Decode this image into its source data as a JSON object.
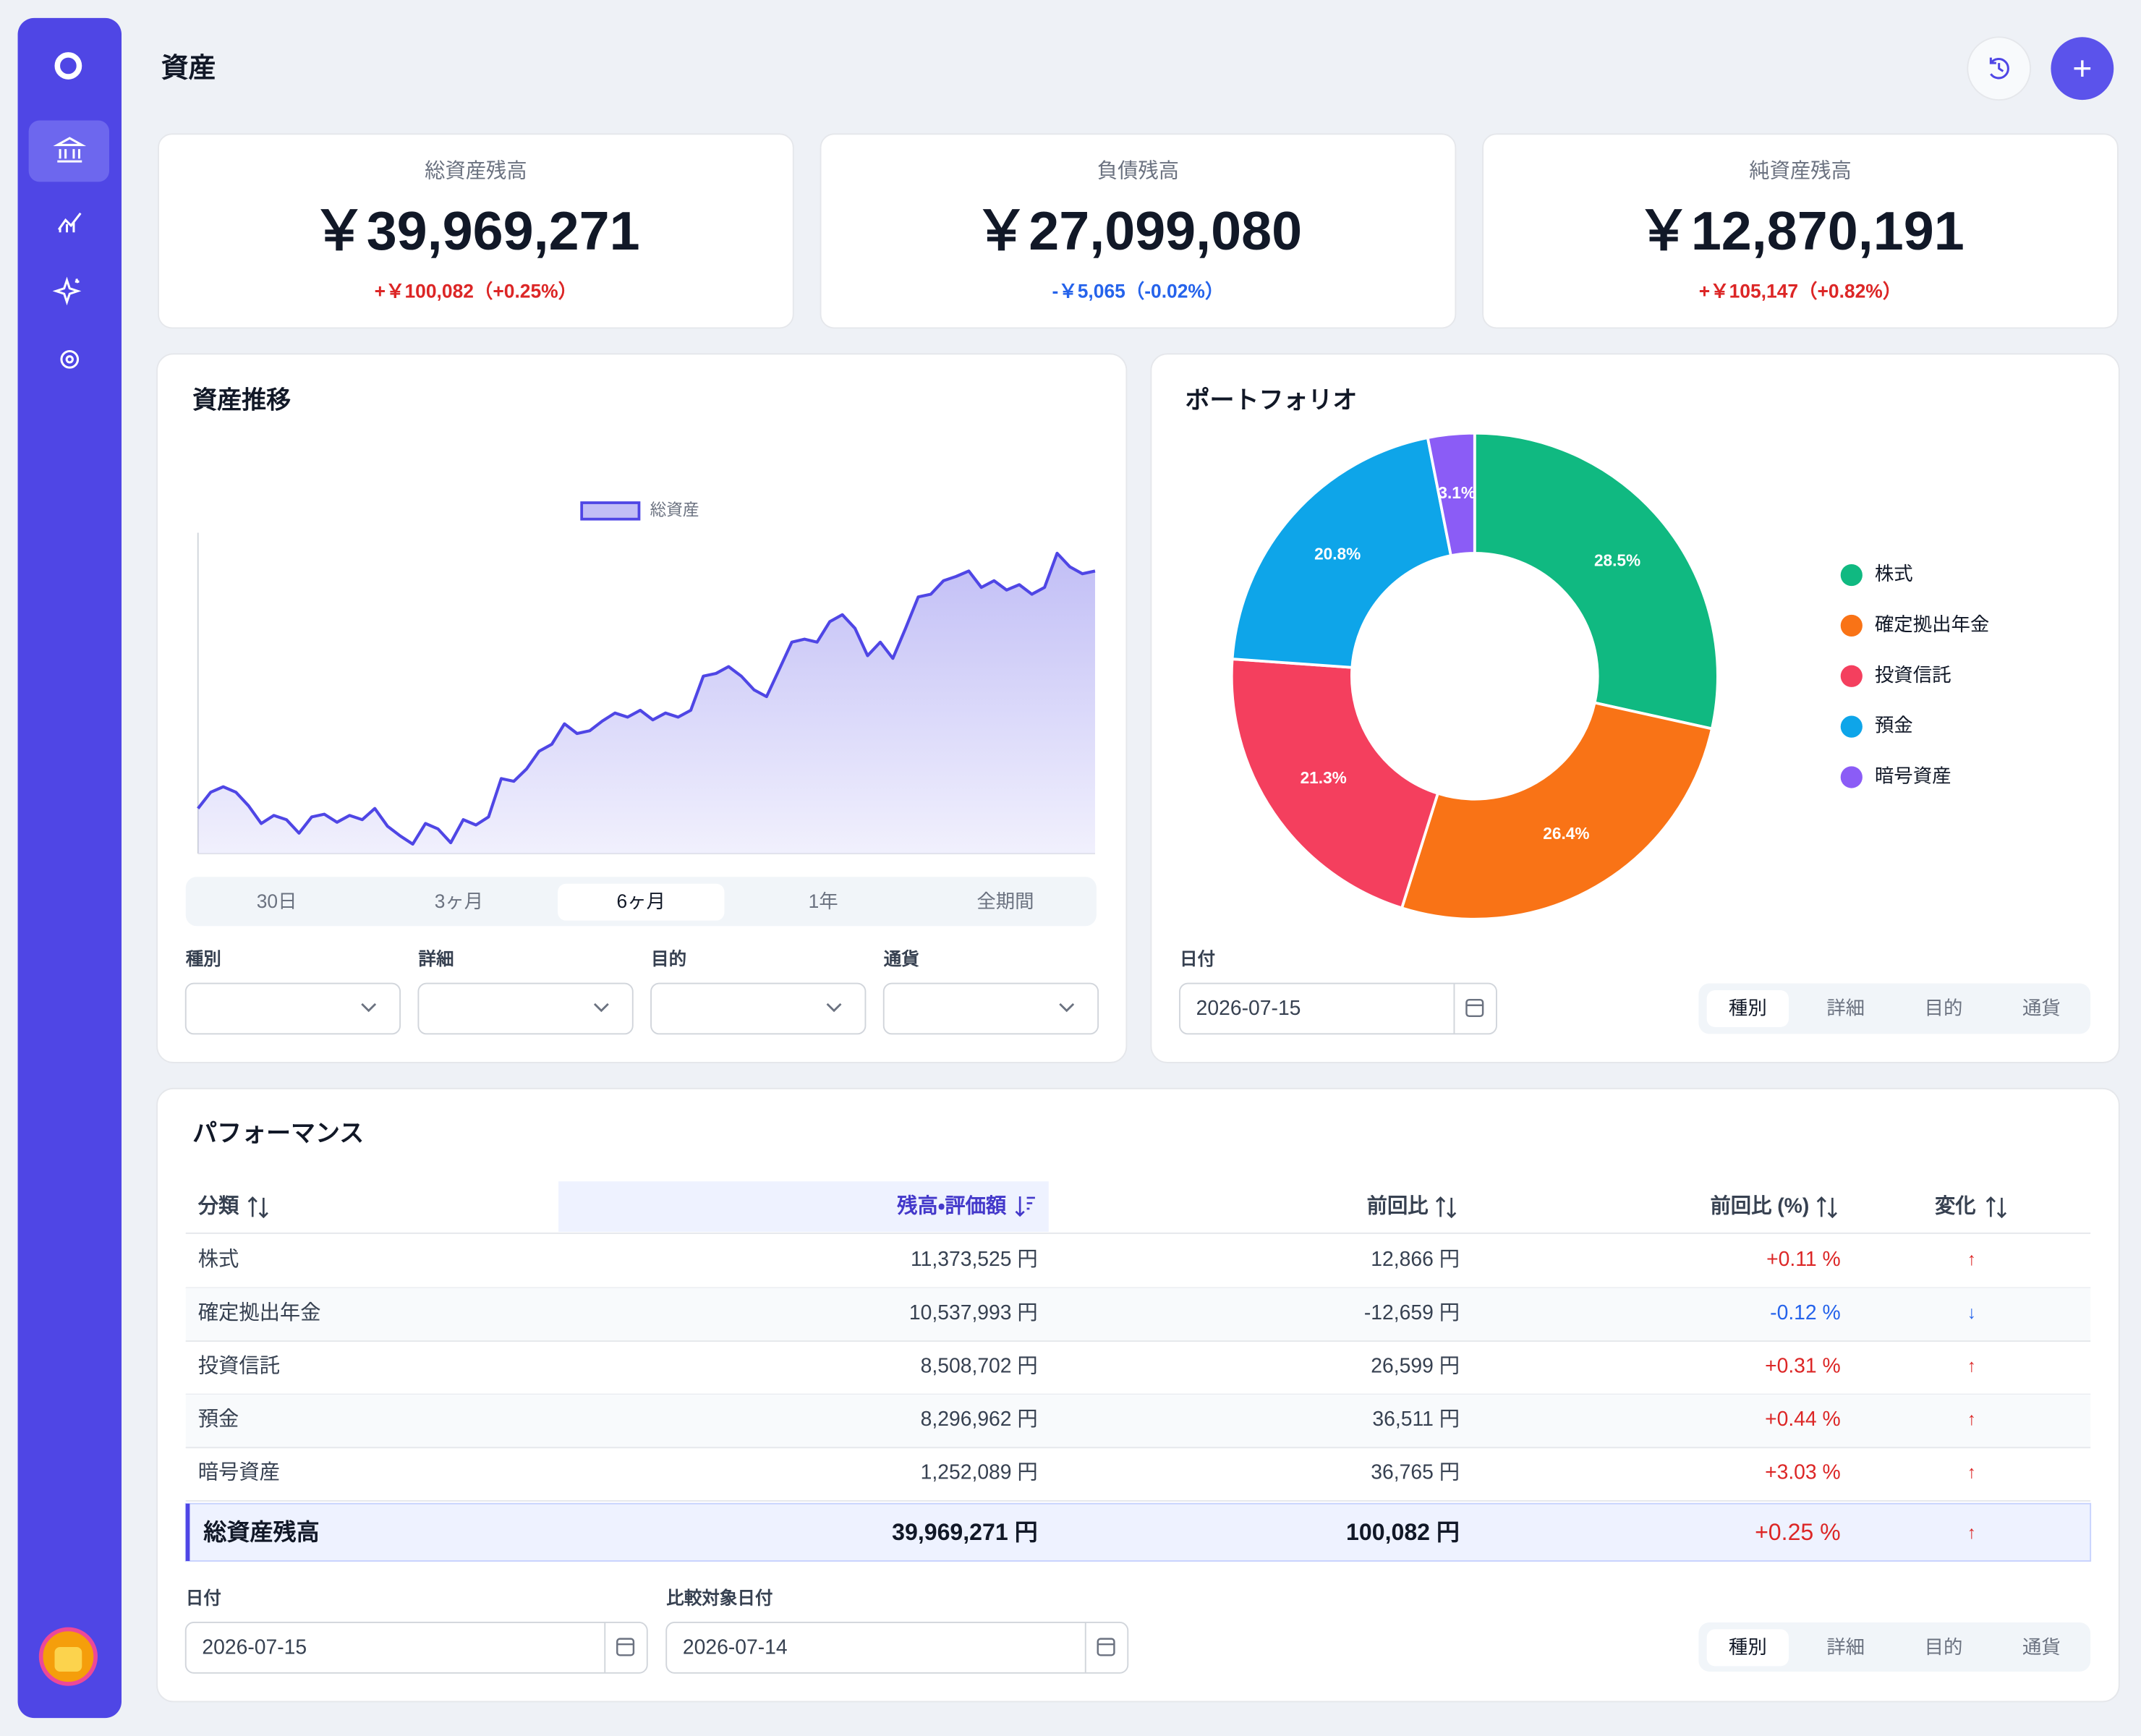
{
  "header": {
    "title": "資産"
  },
  "summary_cards": [
    {
      "label": "総資産残高",
      "amount": "￥39,969,271",
      "change": "+￥100,082（+0.25%）"
    },
    {
      "label": "負債残高",
      "amount": "￥27,099,080",
      "change": "-￥5,065（-0.02%）"
    },
    {
      "label": "純資産残高",
      "amount": "￥12,870,191",
      "change": "+￥105,147（+0.82%）"
    }
  ],
  "asset_chart": {
    "type": "area",
    "title": "資産推移",
    "ylim": [
      28000000,
      41000000
    ],
    "series": [
      {
        "name": "総資産",
        "color": "#4f46e5",
        "values": [
          29830000,
          30490000,
          30710000,
          30490000,
          29940000,
          29220000,
          29550000,
          29380000,
          28830000,
          29490000,
          29600000,
          29270000,
          29550000,
          29380000,
          29830000,
          29110000,
          28720000,
          28390000,
          29220000,
          29000000,
          28440000,
          29380000,
          29160000,
          29490000,
          31040000,
          30930000,
          31430000,
          32150000,
          32430000,
          33260000,
          32870000,
          32980000,
          33370000,
          33700000,
          33530000,
          33810000,
          33420000,
          33700000,
          33530000,
          33810000,
          35190000,
          35300000,
          35580000,
          35190000,
          34640000,
          34360000,
          35470000,
          36570000,
          36690000,
          36570000,
          37400000,
          37680000,
          37130000,
          36020000,
          36570000,
          35910000,
          37130000,
          38400000,
          38510000,
          39060000,
          39230000,
          39450000,
          38790000,
          39060000,
          38680000,
          38900000,
          38510000,
          38790000,
          40170000,
          39620000,
          39340000,
          39450000
        ]
      }
    ],
    "ranges": [
      "30日",
      "3ヶ月",
      "6ヶ月",
      "1年",
      "全期間"
    ],
    "active_range": 2,
    "filters": [
      "種別",
      "詳細",
      "目的",
      "通貨"
    ]
  },
  "portfolio": {
    "type": "pie",
    "title": "ポートフォリオ",
    "categories": [
      "株式",
      "確定拠出年金",
      "投資信託",
      "預金",
      "暗号資産"
    ],
    "values": [
      28.5,
      26.4,
      21.3,
      20.8,
      3.1
    ],
    "value_labels": [
      "28.5%",
      "26.4%",
      "21.3%",
      "20.8%",
      "3.1%"
    ],
    "colors": [
      "#10b981",
      "#f97316",
      "#f43f5e",
      "#0ea5e9",
      "#8b5cf6"
    ],
    "date_label": "日付",
    "date": "2026-07-15",
    "tabs": [
      "種別",
      "詳細",
      "目的",
      "通貨"
    ],
    "active_tab": 0
  },
  "performance": {
    "title": "パフォーマンス",
    "columns": [
      "分類",
      "残高・評価額",
      "前回比",
      "前回比 (%)",
      "変化"
    ],
    "sorted_column": 1,
    "rows": [
      [
        "株式",
        "11,373,525 円",
        "12,866 円",
        "+0.11 %",
        "↑"
      ],
      [
        "確定拠出年金",
        "10,537,993 円",
        "-12,659 円",
        "-0.12 %",
        "↓"
      ],
      [
        "投資信託",
        "8,508,702 円",
        "26,599 円",
        "+0.31 %",
        "↑"
      ],
      [
        "預金",
        "8,296,962 円",
        "36,511 円",
        "+0.44 %",
        "↑"
      ],
      [
        "暗号資産",
        "1,252,089 円",
        "36,765 円",
        "+3.03 %",
        "↑"
      ]
    ],
    "total": [
      "総資産残高",
      "39,969,271 円",
      "100,082 円",
      "+0.25 %",
      "↑"
    ],
    "date_label": "日付",
    "date": "2026-07-15",
    "compare_label": "比較対象日付",
    "compare_date": "2026-07-14",
    "tabs": [
      "種別",
      "詳細",
      "目的",
      "通貨"
    ],
    "active_tab": 0
  }
}
